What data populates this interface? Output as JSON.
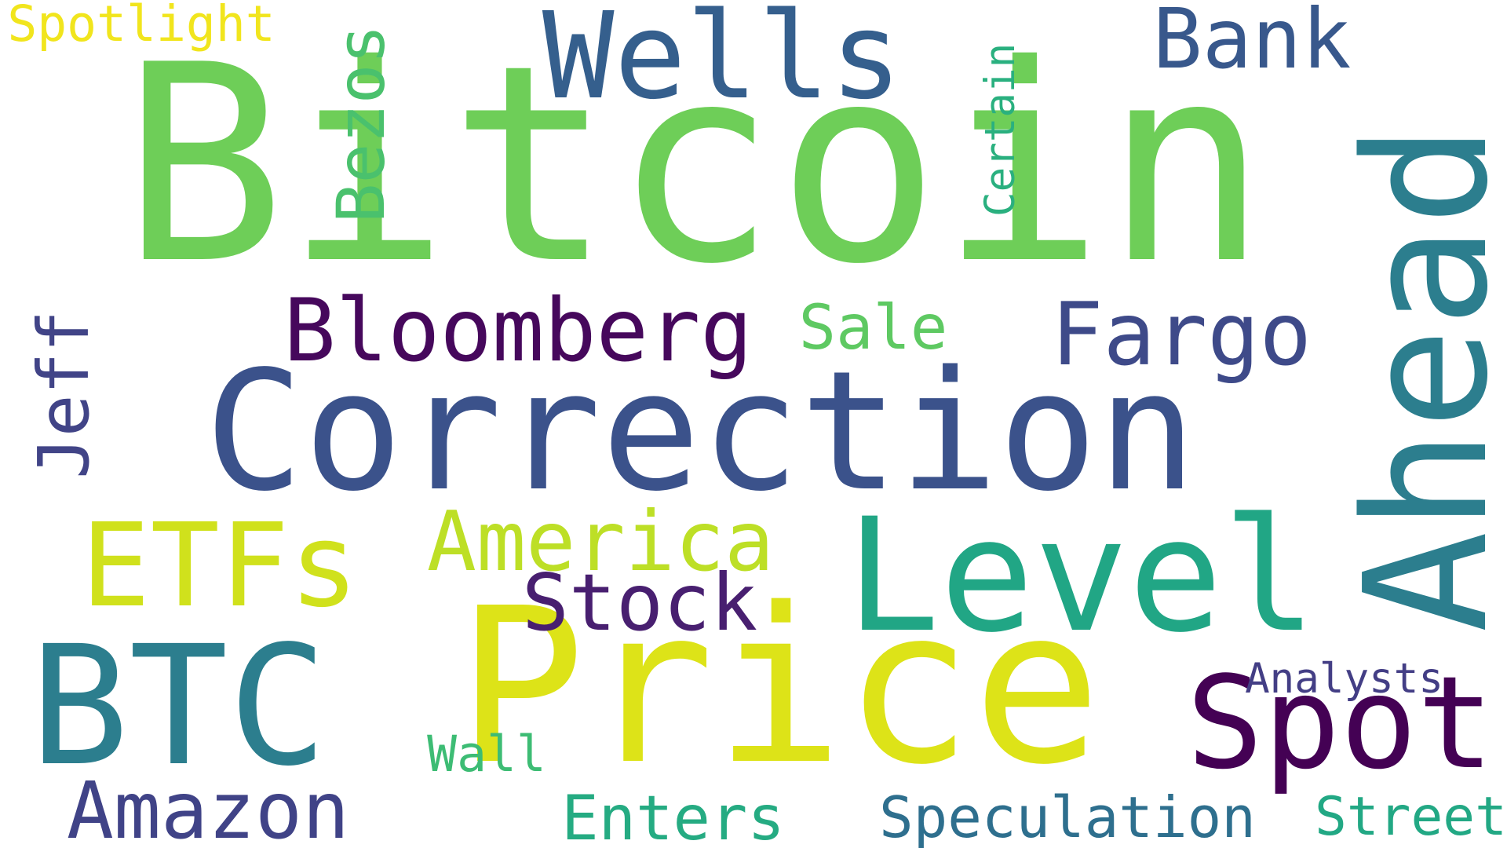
{
  "words": [
    {
      "text": "Bitcoin",
      "color": "#6ece58",
      "vertical": false
    },
    {
      "text": "Correction",
      "color": "#3b528b",
      "vertical": false
    },
    {
      "text": "Price",
      "color": "#dde318",
      "vertical": false
    },
    {
      "text": "Ahead",
      "color": "#2c7e8e",
      "vertical": true
    },
    {
      "text": "Wells",
      "color": "#355f8d",
      "vertical": false
    },
    {
      "text": "BTC",
      "color": "#2c7e8e",
      "vertical": false
    },
    {
      "text": "Level",
      "color": "#21a685",
      "vertical": false
    },
    {
      "text": "Spot",
      "color": "#440154",
      "vertical": false
    },
    {
      "text": "ETFs",
      "color": "#d0e11c",
      "vertical": false
    },
    {
      "text": "Fargo",
      "color": "#3e4a89",
      "vertical": false
    },
    {
      "text": "Bloomberg",
      "color": "#46085c",
      "vertical": false
    },
    {
      "text": "America",
      "color": "#bddf26",
      "vertical": false
    },
    {
      "text": "Amazon",
      "color": "#404387",
      "vertical": false
    },
    {
      "text": "Bank",
      "color": "#38588c",
      "vertical": false
    },
    {
      "text": "Enters",
      "color": "#25ab82",
      "vertical": false
    },
    {
      "text": "Stock",
      "color": "#481f70",
      "vertical": false
    },
    {
      "text": "Sale",
      "color": "#5ec962",
      "vertical": false
    },
    {
      "text": "Bezos",
      "color": "#4ac16d",
      "vertical": true
    },
    {
      "text": "Jeff",
      "color": "#414487",
      "vertical": true
    },
    {
      "text": "Speculation",
      "color": "#2e6f8e",
      "vertical": false
    },
    {
      "text": "Street",
      "color": "#22a884",
      "vertical": false
    },
    {
      "text": "Certain",
      "color": "#2ab07f",
      "vertical": true
    },
    {
      "text": "Spotlight",
      "color": "#f1e51d",
      "vertical": false
    },
    {
      "text": "Wall",
      "color": "#3dbc74",
      "vertical": false
    },
    {
      "text": "Analysts",
      "color": "#433e85",
      "vertical": false
    }
  ]
}
